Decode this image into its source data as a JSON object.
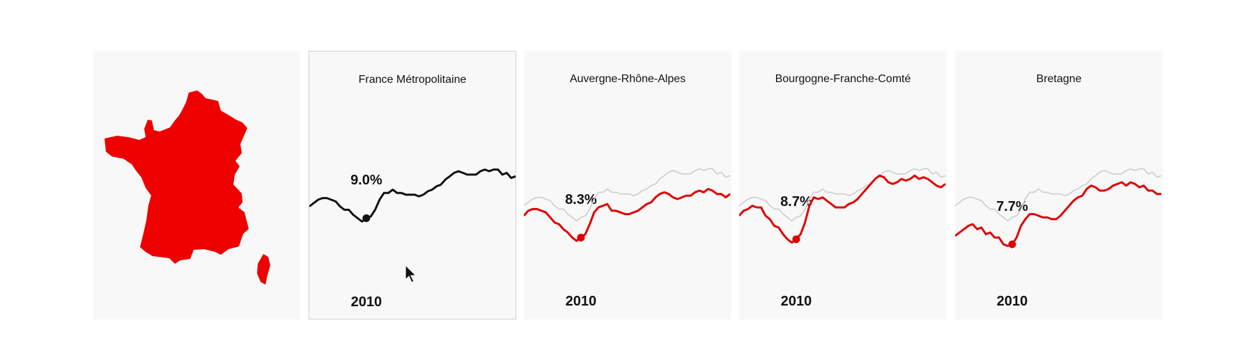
{
  "map": {
    "icon": "france-map-icon",
    "fill": "#ee0000"
  },
  "colors": {
    "highlight": "#e00000",
    "reference": "#cccccc",
    "selected": "#111111"
  },
  "chart_data": [
    {
      "type": "line",
      "title": "France Métropolitaine",
      "selected": true,
      "highlight_year": "2010",
      "highlight_value": "9.0%",
      "series": [
        {
          "values": [
            8.2,
            8.4,
            8.6,
            8.7,
            8.7,
            8.6,
            8.5,
            8.2,
            8.0,
            8.0,
            7.7,
            7.5,
            7.3,
            7.5,
            7.6,
            8.0,
            8.6,
            9.0,
            9.0,
            9.2,
            9.0,
            9.0,
            8.9,
            8.9,
            8.9,
            8.8,
            8.9,
            9.1,
            9.2,
            9.4,
            9.5,
            9.8,
            10.0,
            10.2,
            10.3,
            10.2,
            10.1,
            10.1,
            10.1,
            10.3,
            10.4,
            10.3,
            10.4,
            10.4,
            10.1,
            10.2,
            9.9,
            10.0
          ]
        }
      ]
    },
    {
      "type": "line",
      "title": "Auvergne-Rhône-Alpes",
      "selected": false,
      "highlight_year": "2010",
      "highlight_value": "8.3%",
      "series": [
        {
          "values": [
            7.6,
            7.9,
            8.0,
            8.0,
            7.9,
            7.8,
            7.5,
            7.2,
            7.1,
            6.8,
            6.6,
            6.3,
            6.1,
            6.3,
            6.5,
            7.1,
            7.8,
            8.1,
            8.2,
            8.3,
            7.9,
            7.9,
            7.8,
            7.7,
            7.7,
            7.8,
            7.9,
            8.1,
            8.3,
            8.4,
            8.7,
            8.9,
            9.0,
            8.9,
            8.7,
            8.6,
            8.7,
            8.8,
            8.8,
            9.0,
            9.1,
            9.0,
            9.2,
            9.1,
            8.9,
            8.9,
            8.7,
            8.9
          ]
        }
      ]
    },
    {
      "type": "line",
      "title": "Bourgogne-Franche-Comté",
      "selected": false,
      "highlight_year": "2010",
      "highlight_value": "8.7%",
      "series": [
        {
          "values": [
            7.6,
            7.9,
            8.0,
            8.2,
            8.1,
            8.1,
            7.6,
            7.4,
            7.0,
            6.9,
            6.5,
            6.2,
            6.0,
            6.2,
            6.5,
            7.2,
            8.2,
            8.7,
            8.6,
            8.7,
            8.5,
            8.3,
            8.1,
            8.1,
            8.1,
            8.3,
            8.4,
            8.6,
            8.9,
            9.2,
            9.5,
            9.8,
            10.0,
            9.9,
            9.6,
            9.5,
            9.6,
            9.8,
            9.7,
            9.8,
            10.0,
            9.8,
            9.9,
            9.8,
            9.6,
            9.4,
            9.3,
            9.5
          ]
        }
      ]
    },
    {
      "type": "line",
      "title": "Bretagne",
      "selected": false,
      "highlight_year": "2010",
      "highlight_value": "7.7%",
      "series": [
        {
          "values": [
            6.4,
            6.6,
            6.8,
            7.0,
            7.1,
            6.8,
            6.9,
            6.5,
            6.6,
            6.3,
            6.3,
            5.9,
            5.8,
            5.9,
            6.3,
            7.0,
            7.4,
            7.7,
            7.7,
            7.6,
            7.5,
            7.5,
            7.4,
            7.4,
            7.6,
            7.9,
            8.2,
            8.5,
            8.7,
            8.8,
            9.2,
            9.4,
            9.3,
            9.1,
            9.1,
            9.2,
            9.4,
            9.5,
            9.6,
            9.4,
            9.6,
            9.5,
            9.3,
            9.4,
            9.1,
            9.1,
            8.9,
            8.9
          ]
        }
      ]
    }
  ]
}
